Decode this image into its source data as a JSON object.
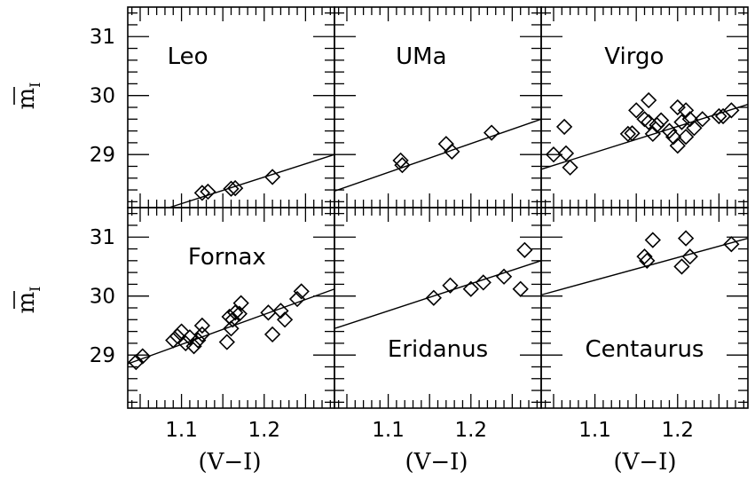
{
  "figure": {
    "xlabel": "(V−I)",
    "ylabel": "m",
    "ylabel_sub": "I",
    "x_ticks": [
      "1.1",
      "1.2"
    ],
    "y_ticks": [
      "29",
      "30",
      "31"
    ]
  },
  "chart_data": [
    {
      "type": "scatter",
      "title": "Leo",
      "xlabel": "",
      "ylabel": "m_I",
      "xlim": [
        1.035,
        1.285
      ],
      "ylim": [
        28.1,
        31.5
      ],
      "points": [
        [
          1.125,
          28.35
        ],
        [
          1.132,
          28.37
        ],
        [
          1.16,
          28.42
        ],
        [
          1.165,
          28.43
        ],
        [
          1.21,
          28.62
        ]
      ],
      "fit": [
        [
          1.085,
          28.1
        ],
        [
          1.285,
          29.0
        ]
      ]
    },
    {
      "type": "scatter",
      "title": "UMa",
      "xlabel": "",
      "ylabel": "",
      "xlim": [
        1.035,
        1.285
      ],
      "ylim": [
        28.1,
        31.5
      ],
      "points": [
        [
          1.115,
          28.9
        ],
        [
          1.117,
          28.82
        ],
        [
          1.17,
          29.18
        ],
        [
          1.177,
          29.05
        ],
        [
          1.225,
          29.37
        ]
      ],
      "fit": [
        [
          1.035,
          28.38
        ],
        [
          1.285,
          29.6
        ]
      ]
    },
    {
      "type": "scatter",
      "title": "Virgo",
      "xlabel": "",
      "ylabel": "",
      "xlim": [
        1.035,
        1.285
      ],
      "ylim": [
        28.1,
        31.5
      ],
      "points": [
        [
          1.05,
          29.0
        ],
        [
          1.063,
          29.47
        ],
        [
          1.065,
          29.02
        ],
        [
          1.07,
          28.78
        ],
        [
          1.14,
          29.35
        ],
        [
          1.145,
          29.36
        ],
        [
          1.15,
          29.75
        ],
        [
          1.16,
          29.6
        ],
        [
          1.165,
          29.55
        ],
        [
          1.165,
          29.92
        ],
        [
          1.17,
          29.35
        ],
        [
          1.175,
          29.5
        ],
        [
          1.18,
          29.58
        ],
        [
          1.19,
          29.4
        ],
        [
          1.195,
          29.3
        ],
        [
          1.2,
          29.15
        ],
        [
          1.2,
          29.8
        ],
        [
          1.205,
          29.55
        ],
        [
          1.21,
          29.3
        ],
        [
          1.21,
          29.75
        ],
        [
          1.215,
          29.6
        ],
        [
          1.22,
          29.45
        ],
        [
          1.23,
          29.6
        ],
        [
          1.25,
          29.65
        ],
        [
          1.255,
          29.65
        ],
        [
          1.265,
          29.75
        ]
      ],
      "fit": [
        [
          1.035,
          28.75
        ],
        [
          1.285,
          29.85
        ]
      ]
    },
    {
      "type": "scatter",
      "title": "Fornax",
      "xlabel": "(V−I)",
      "ylabel": "m_I",
      "xlim": [
        1.035,
        1.285
      ],
      "ylim": [
        28.1,
        31.5
      ],
      "points": [
        [
          1.045,
          28.88
        ],
        [
          1.053,
          28.98
        ],
        [
          1.09,
          29.25
        ],
        [
          1.095,
          29.32
        ],
        [
          1.1,
          29.4
        ],
        [
          1.105,
          29.2
        ],
        [
          1.11,
          29.3
        ],
        [
          1.115,
          29.15
        ],
        [
          1.12,
          29.25
        ],
        [
          1.125,
          29.35
        ],
        [
          1.125,
          29.5
        ],
        [
          1.155,
          29.22
        ],
        [
          1.158,
          29.65
        ],
        [
          1.16,
          29.45
        ],
        [
          1.162,
          29.6
        ],
        [
          1.165,
          29.72
        ],
        [
          1.17,
          29.7
        ],
        [
          1.172,
          29.88
        ],
        [
          1.205,
          29.72
        ],
        [
          1.21,
          29.35
        ],
        [
          1.22,
          29.75
        ],
        [
          1.225,
          29.6
        ],
        [
          1.24,
          29.95
        ],
        [
          1.245,
          30.08
        ]
      ],
      "fit": [
        [
          1.035,
          28.85
        ],
        [
          1.285,
          30.12
        ]
      ]
    },
    {
      "type": "scatter",
      "title": "Eridanus",
      "xlabel": "(V−I)",
      "ylabel": "",
      "xlim": [
        1.035,
        1.285
      ],
      "ylim": [
        28.1,
        31.5
      ],
      "points": [
        [
          1.155,
          29.97
        ],
        [
          1.175,
          30.18
        ],
        [
          1.2,
          30.12
        ],
        [
          1.215,
          30.23
        ],
        [
          1.24,
          30.33
        ],
        [
          1.265,
          30.78
        ],
        [
          1.26,
          30.12
        ]
      ],
      "fit": [
        [
          1.035,
          29.45
        ],
        [
          1.285,
          30.6
        ]
      ]
    },
    {
      "type": "scatter",
      "title": "Centaurus",
      "xlabel": "(V−I)",
      "ylabel": "",
      "xlim": [
        1.035,
        1.285
      ],
      "ylim": [
        28.1,
        31.5
      ],
      "points": [
        [
          1.16,
          30.67
        ],
        [
          1.163,
          30.6
        ],
        [
          1.17,
          30.95
        ],
        [
          1.205,
          30.5
        ],
        [
          1.21,
          30.98
        ],
        [
          1.215,
          30.67
        ],
        [
          1.265,
          30.88
        ]
      ],
      "fit": [
        [
          1.035,
          30.02
        ],
        [
          1.285,
          30.98
        ]
      ]
    }
  ]
}
